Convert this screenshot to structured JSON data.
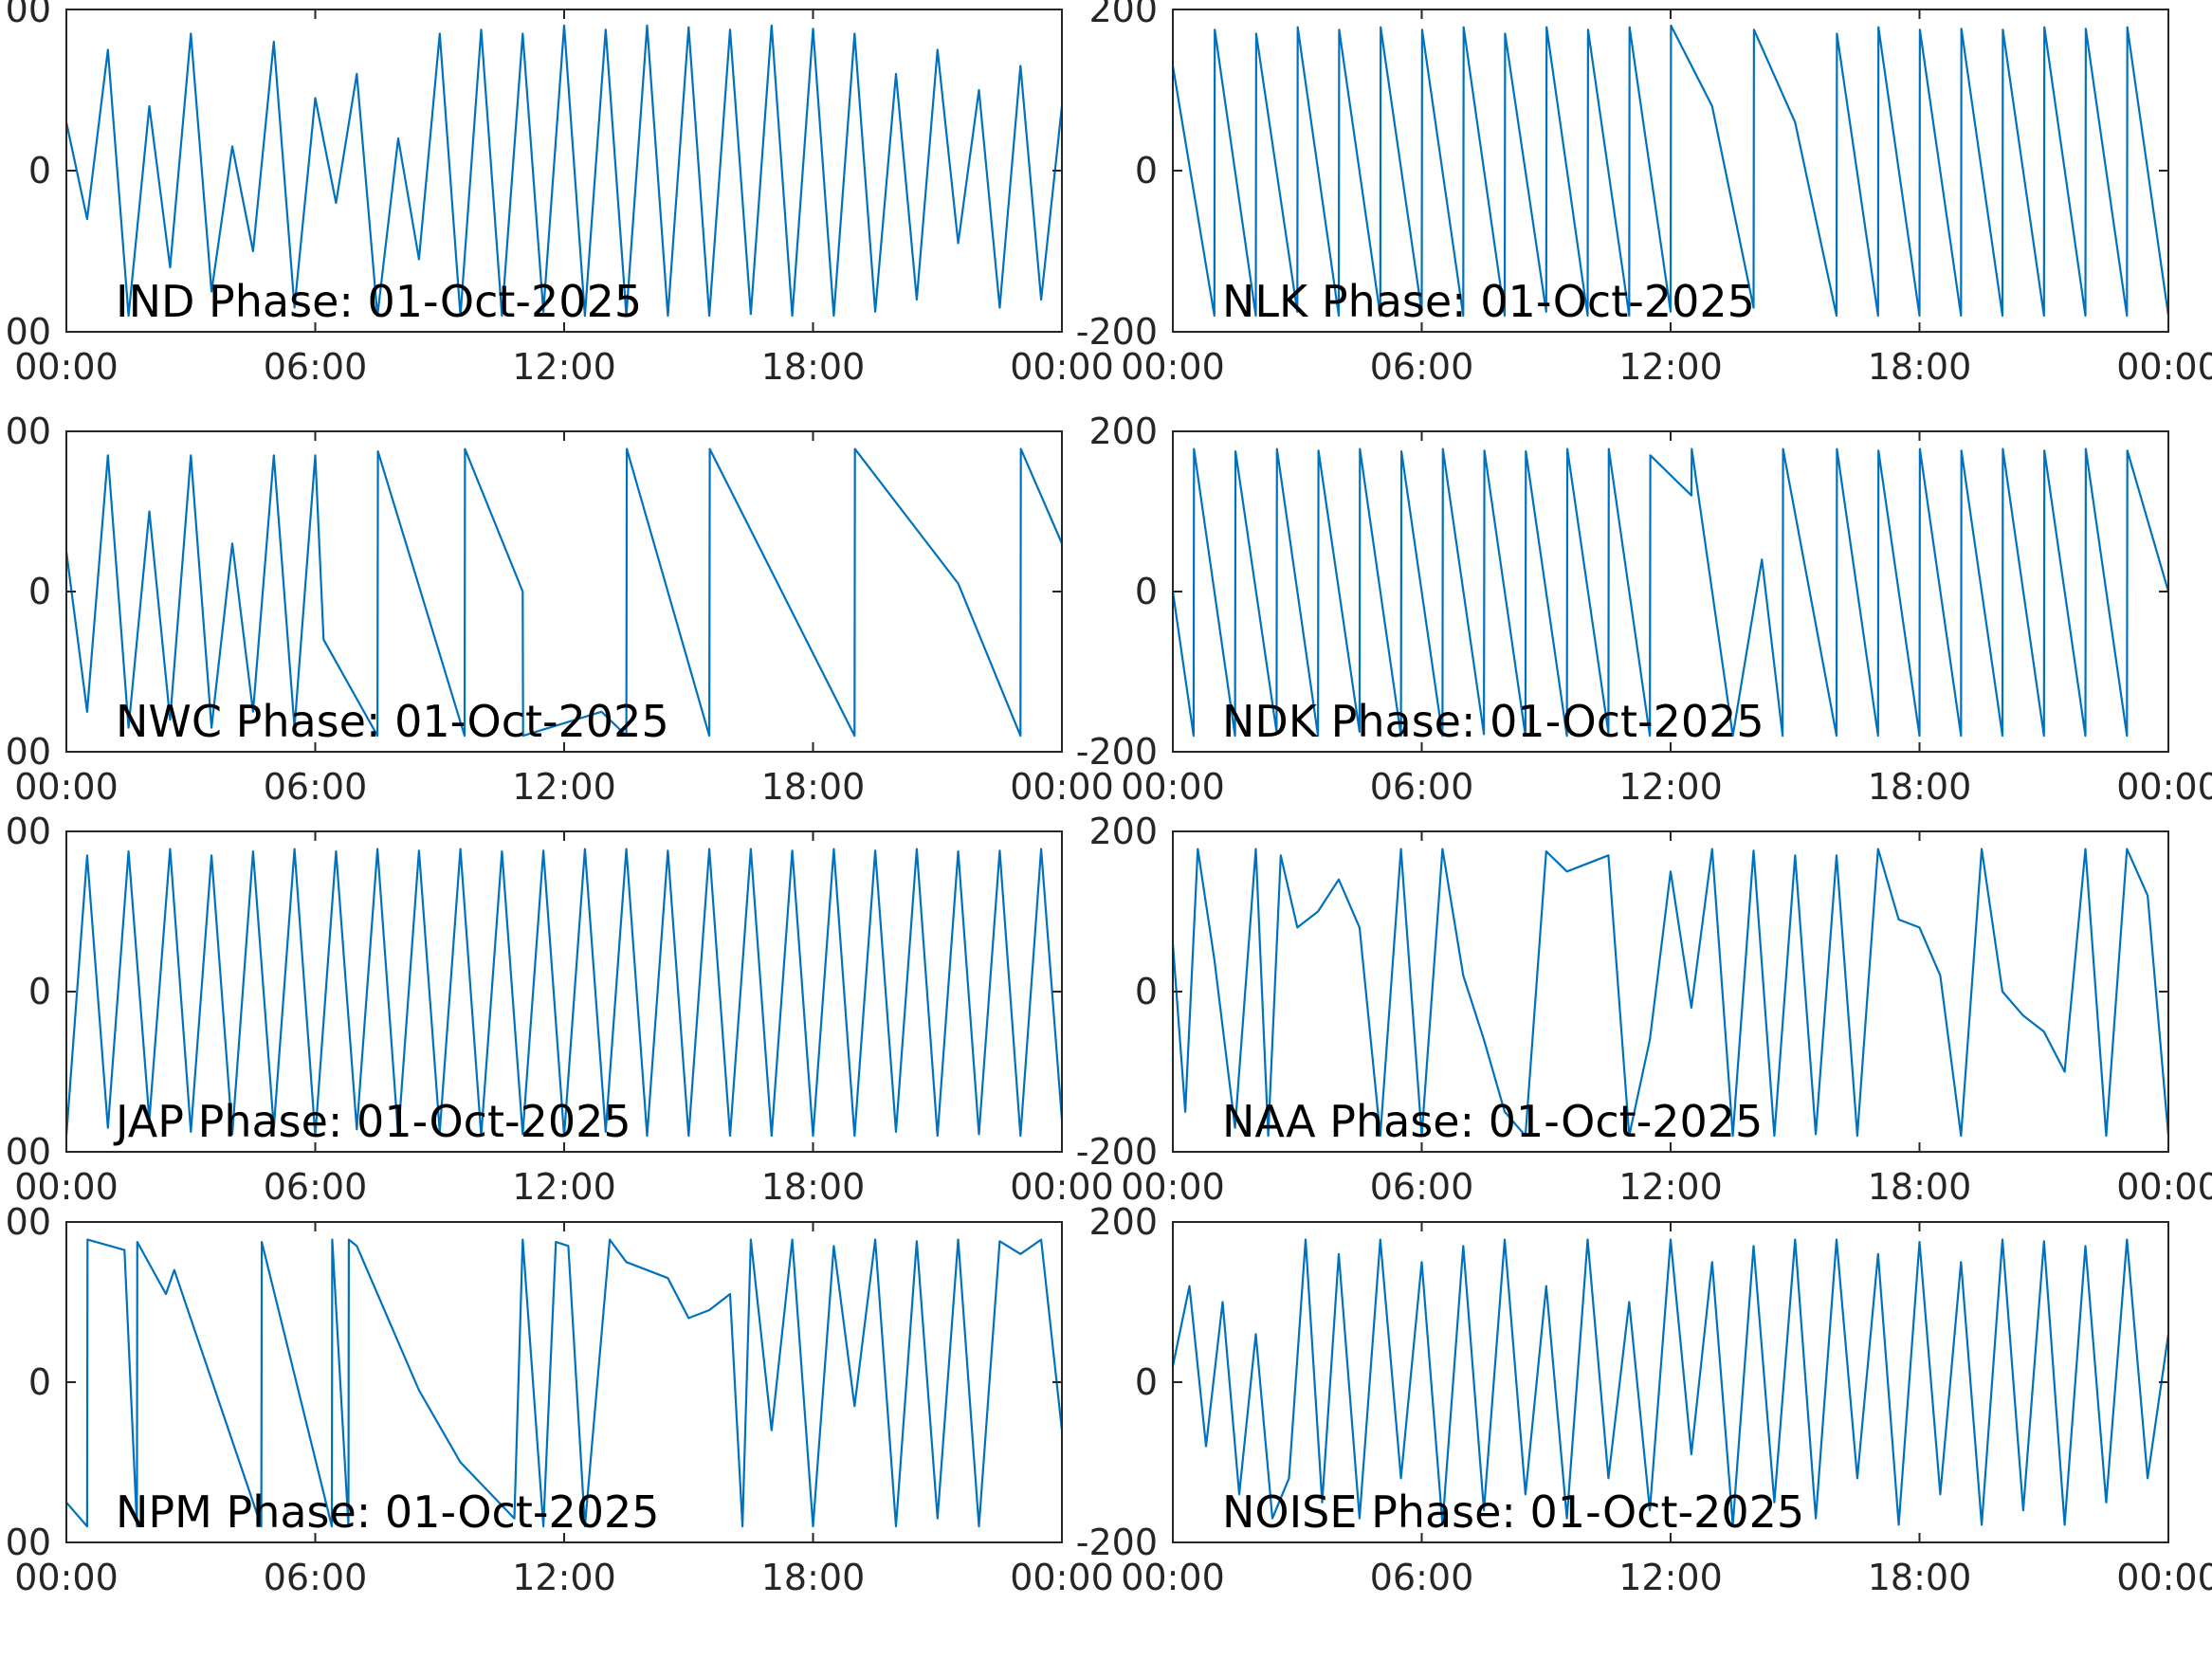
{
  "figure": {
    "line_color": "#0072BD",
    "axis_color": "#262626",
    "background": "#ffffff"
  },
  "chart_data": [
    {
      "type": "line",
      "title": "IND Phase: 01-Oct-2025",
      "xlabel": "",
      "ylabel": "",
      "xlim": [
        "00:00",
        "24:00"
      ],
      "ylim": [
        -200,
        200
      ],
      "x_ticks": [
        "00:00",
        "06:00",
        "12:00",
        "18:00",
        "00:00"
      ],
      "y_ticks": [
        200,
        0,
        -200
      ],
      "y_tick_labels": [
        "00",
        "0",
        "00"
      ],
      "grid": false,
      "x_unit": "hours",
      "series": [
        {
          "x": [
            0,
            0.5,
            1,
            1.5,
            2,
            2.5,
            3,
            3.5,
            4,
            4.5,
            5,
            5.5,
            6,
            6.5,
            7,
            7.5,
            8,
            8.5,
            9,
            9.5,
            10,
            10.5,
            11,
            11.5,
            12,
            12.5,
            13,
            13.5,
            14,
            14.5,
            15,
            15.5,
            16,
            16.5,
            17,
            17.5,
            18,
            18.5,
            19,
            19.5,
            20,
            20.5,
            21,
            21.5,
            22,
            22.5,
            23,
            23.5,
            24
          ],
          "y": [
            60,
            -60,
            150,
            -180,
            80,
            -120,
            170,
            -150,
            30,
            -100,
            160,
            -170,
            90,
            -40,
            120,
            -180,
            40,
            -110,
            170,
            -180,
            175,
            -180,
            170,
            -175,
            180,
            -180,
            175,
            -180,
            180,
            -180,
            178,
            -180,
            175,
            -178,
            180,
            -180,
            176,
            -180,
            170,
            -175,
            120,
            -160,
            150,
            -90,
            100,
            -170,
            130,
            -160,
            80
          ]
        }
      ]
    },
    {
      "type": "line",
      "title": "NLK Phase: 01-Oct-2025",
      "xlabel": "",
      "ylabel": "",
      "xlim": [
        "00:00",
        "24:00"
      ],
      "ylim": [
        -200,
        200
      ],
      "x_ticks": [
        "00:00",
        "06:00",
        "12:00",
        "18:00",
        "00:00"
      ],
      "y_ticks": [
        200,
        0,
        -200
      ],
      "y_tick_labels": [
        "200",
        "0",
        "-200"
      ],
      "grid": false,
      "x_unit": "hours",
      "series": [
        {
          "x": [
            0,
            1,
            1.01,
            2,
            2.01,
            3,
            3.01,
            4,
            4.01,
            5,
            5.01,
            6,
            6.01,
            7,
            7.01,
            8,
            8.01,
            9,
            9.01,
            10,
            10.01,
            11,
            11.01,
            12,
            12.01,
            13,
            14,
            14.01,
            15,
            16,
            16.01,
            17,
            17.01,
            18,
            18.01,
            19,
            19.01,
            20,
            20.01,
            21,
            21.01,
            22,
            22.01,
            23,
            23.01,
            24
          ],
          "y": [
            130,
            -180,
            175,
            -180,
            170,
            -175,
            178,
            -180,
            175,
            -180,
            178,
            -175,
            175,
            -180,
            178,
            -180,
            170,
            -175,
            178,
            -180,
            175,
            -180,
            178,
            -175,
            180,
            80,
            -170,
            175,
            60,
            -180,
            170,
            -180,
            178,
            -180,
            175,
            -180,
            176,
            -180,
            175,
            -180,
            178,
            -180,
            176,
            -180,
            178,
            -180
          ]
        }
      ]
    },
    {
      "type": "line",
      "title": "NWC Phase: 01-Oct-2025",
      "xlabel": "",
      "ylabel": "",
      "xlim": [
        "00:00",
        "24:00"
      ],
      "ylim": [
        -200,
        200
      ],
      "x_ticks": [
        "00:00",
        "06:00",
        "12:00",
        "18:00",
        "00:00"
      ],
      "y_ticks": [
        200,
        0,
        -200
      ],
      "y_tick_labels": [
        "00",
        "0",
        "00"
      ],
      "grid": false,
      "x_unit": "hours",
      "series": [
        {
          "x": [
            0,
            0.5,
            1,
            1.5,
            2,
            2.5,
            3,
            3.5,
            4,
            4.5,
            5,
            5.5,
            6,
            6.2,
            7.5,
            7.51,
            9.6,
            9.61,
            11,
            11.01,
            12.9,
            13.5,
            13.51,
            15.5,
            15.51,
            19,
            19.01,
            21.5,
            23,
            23.01,
            24
          ],
          "y": [
            50,
            -150,
            170,
            -170,
            100,
            -160,
            170,
            -170,
            60,
            -150,
            170,
            -170,
            170,
            -60,
            -180,
            175,
            -180,
            178,
            0,
            -180,
            -150,
            -180,
            178,
            -180,
            178,
            -180,
            178,
            10,
            -180,
            178,
            60
          ]
        }
      ]
    },
    {
      "type": "line",
      "title": "NDK Phase: 01-Oct-2025",
      "xlabel": "",
      "ylabel": "",
      "xlim": [
        "00:00",
        "24:00"
      ],
      "ylim": [
        -200,
        200
      ],
      "x_ticks": [
        "00:00",
        "06:00",
        "12:00",
        "18:00",
        "00:00"
      ],
      "y_ticks": [
        200,
        0,
        -200
      ],
      "y_tick_labels": [
        "200",
        "0",
        "-200"
      ],
      "grid": false,
      "x_unit": "hours",
      "series": [
        {
          "x": [
            0,
            0.5,
            0.51,
            1.5,
            1.51,
            2.5,
            2.51,
            3.5,
            3.51,
            4.5,
            4.51,
            5.5,
            5.51,
            6.5,
            6.51,
            7.5,
            7.51,
            8.5,
            8.51,
            9.5,
            9.51,
            10.5,
            10.51,
            11.5,
            11.51,
            12.5,
            12.51,
            13.5,
            14.2,
            14.7,
            14.71,
            16,
            16.01,
            17,
            17.01,
            18,
            18.01,
            19,
            19.01,
            20,
            20.01,
            21,
            21.01,
            22,
            22.01,
            23,
            23.01,
            24
          ],
          "y": [
            0,
            -180,
            178,
            -180,
            175,
            -175,
            178,
            -180,
            176,
            -175,
            178,
            -180,
            175,
            -180,
            178,
            -178,
            176,
            -180,
            175,
            -180,
            178,
            -176,
            178,
            -180,
            170,
            120,
            178,
            -180,
            40,
            -180,
            178,
            -180,
            178,
            -180,
            176,
            -180,
            178,
            -180,
            176,
            -180,
            178,
            -180,
            176,
            -180,
            178,
            -180,
            176,
            0
          ]
        }
      ]
    },
    {
      "type": "line",
      "title": "JAP Phase: 01-Oct-2025",
      "xlabel": "",
      "ylabel": "",
      "xlim": [
        "00:00",
        "24:00"
      ],
      "ylim": [
        -200,
        200
      ],
      "x_ticks": [
        "00:00",
        "06:00",
        "12:00",
        "18:00",
        "00:00"
      ],
      "y_ticks": [
        200,
        0,
        -200
      ],
      "y_tick_labels": [
        "00",
        "0",
        "00"
      ],
      "grid": false,
      "x_unit": "hours",
      "series": [
        {
          "x": [
            0,
            0.5,
            1,
            1.5,
            2,
            2.5,
            3,
            3.5,
            4,
            4.5,
            5,
            5.5,
            6,
            6.5,
            7,
            7.5,
            8,
            8.5,
            9,
            9.5,
            10,
            10.5,
            11,
            11.5,
            12,
            12.5,
            13,
            13.5,
            14,
            14.5,
            15,
            15.5,
            16,
            16.5,
            17,
            17.5,
            18,
            18.5,
            19,
            19.5,
            20,
            20.5,
            21,
            21.5,
            22,
            22.5,
            23,
            23.5,
            24
          ],
          "y": [
            -180,
            170,
            -170,
            175,
            -160,
            178,
            -175,
            170,
            -178,
            175,
            -170,
            178,
            -180,
            175,
            -172,
            178,
            -180,
            176,
            -175,
            178,
            -180,
            175,
            -178,
            176,
            -180,
            178,
            -175,
            178,
            -180,
            176,
            -180,
            178,
            -180,
            178,
            -180,
            176,
            -180,
            178,
            -180,
            176,
            -175,
            178,
            -180,
            175,
            -178,
            176,
            -180,
            178,
            -160
          ]
        }
      ]
    },
    {
      "type": "line",
      "title": "NAA Phase: 01-Oct-2025",
      "xlabel": "",
      "ylabel": "",
      "xlim": [
        "00:00",
        "24:00"
      ],
      "ylim": [
        -200,
        200
      ],
      "x_ticks": [
        "00:00",
        "06:00",
        "12:00",
        "18:00",
        "00:00"
      ],
      "y_ticks": [
        200,
        0,
        -200
      ],
      "y_tick_labels": [
        "200",
        "0",
        "-200"
      ],
      "grid": false,
      "x_unit": "hours",
      "series": [
        {
          "x": [
            0,
            0.3,
            0.6,
            1,
            1.5,
            2,
            2.3,
            2.6,
            3,
            3.5,
            4,
            4.5,
            5,
            5.5,
            6,
            6.5,
            7,
            7.5,
            8,
            8.5,
            9,
            9.5,
            10,
            10.5,
            11,
            11.5,
            12,
            12.5,
            13,
            13.5,
            14,
            14.5,
            15,
            15.5,
            16,
            16.5,
            17,
            17.5,
            18,
            18.5,
            19,
            19.5,
            20,
            20.5,
            21,
            21.5,
            22,
            22.5,
            23,
            23.5,
            24
          ],
          "y": [
            60,
            -150,
            178,
            40,
            -170,
            178,
            -180,
            170,
            80,
            100,
            140,
            80,
            -180,
            178,
            -180,
            178,
            20,
            -60,
            -150,
            -180,
            175,
            150,
            160,
            170,
            -180,
            -60,
            150,
            -20,
            178,
            -180,
            176,
            -180,
            170,
            -178,
            170,
            -180,
            178,
            90,
            80,
            20,
            -180,
            178,
            0,
            -30,
            -50,
            -100,
            178,
            -180,
            178,
            120,
            -180
          ]
        }
      ]
    },
    {
      "type": "line",
      "title": "NPM Phase: 01-Oct-2025",
      "xlabel": "",
      "ylabel": "",
      "xlim": [
        "00:00",
        "24:00"
      ],
      "ylim": [
        -200,
        200
      ],
      "x_ticks": [
        "00:00",
        "06:00",
        "12:00",
        "18:00",
        "00:00"
      ],
      "y_ticks": [
        200,
        0,
        -200
      ],
      "y_tick_labels": [
        "00",
        "0",
        "00"
      ],
      "grid": false,
      "x_unit": "hours",
      "series": [
        {
          "x": [
            0,
            0.5,
            0.51,
            1.4,
            1.7,
            1.71,
            2.4,
            2.6,
            4.7,
            4.71,
            6.4,
            6.41,
            6.8,
            6.81,
            7,
            8.5,
            9.5,
            10.8,
            11,
            11.5,
            11.8,
            12.1,
            12.5,
            13.1,
            13.5,
            14.5,
            15,
            15.5,
            16,
            16.3,
            16.5,
            17,
            17.5,
            18,
            18.5,
            19,
            19.5,
            20,
            20.5,
            21,
            21.5,
            22,
            22.5,
            23,
            23.5,
            24
          ],
          "y": [
            -150,
            -180,
            178,
            165,
            -180,
            175,
            110,
            140,
            -180,
            175,
            -180,
            178,
            -180,
            178,
            170,
            -10,
            -100,
            -170,
            178,
            -180,
            175,
            170,
            -180,
            178,
            150,
            130,
            80,
            90,
            110,
            -180,
            178,
            -60,
            178,
            -180,
            170,
            -30,
            178,
            -180,
            176,
            -170,
            178,
            -180,
            176,
            160,
            178,
            -60
          ]
        }
      ]
    },
    {
      "type": "line",
      "title": "NOISE Phase: 01-Oct-2025",
      "xlabel": "",
      "ylabel": "",
      "xlim": [
        "00:00",
        "24:00"
      ],
      "ylim": [
        -200,
        200
      ],
      "x_ticks": [
        "00:00",
        "06:00",
        "12:00",
        "18:00",
        "00:00"
      ],
      "y_ticks": [
        200,
        0,
        -200
      ],
      "y_tick_labels": [
        "200",
        "0",
        "-200"
      ],
      "grid": false,
      "x_unit": "hours",
      "series": [
        {
          "x": [
            0,
            0.4,
            0.8,
            1.2,
            1.6,
            2,
            2.4,
            2.8,
            3.2,
            3.6,
            4,
            4.5,
            5,
            5.5,
            6,
            6.5,
            7,
            7.5,
            8,
            8.5,
            9,
            9.5,
            10,
            10.5,
            11,
            11.5,
            12,
            12.5,
            13,
            13.5,
            14,
            14.5,
            15,
            15.5,
            16,
            16.5,
            17,
            17.5,
            18,
            18.5,
            19,
            19.5,
            20,
            20.5,
            21,
            21.5,
            22,
            22.5,
            23,
            23.5,
            24
          ],
          "y": [
            20,
            120,
            -80,
            100,
            -140,
            60,
            -170,
            -120,
            178,
            -150,
            160,
            -170,
            178,
            -120,
            150,
            -178,
            170,
            -160,
            178,
            -140,
            120,
            -170,
            178,
            -120,
            100,
            -160,
            178,
            -90,
            150,
            -178,
            170,
            -150,
            178,
            -170,
            178,
            -120,
            160,
            -178,
            175,
            -140,
            150,
            -178,
            178,
            -160,
            176,
            -178,
            170,
            -150,
            178,
            -120,
            60
          ]
        }
      ]
    }
  ]
}
